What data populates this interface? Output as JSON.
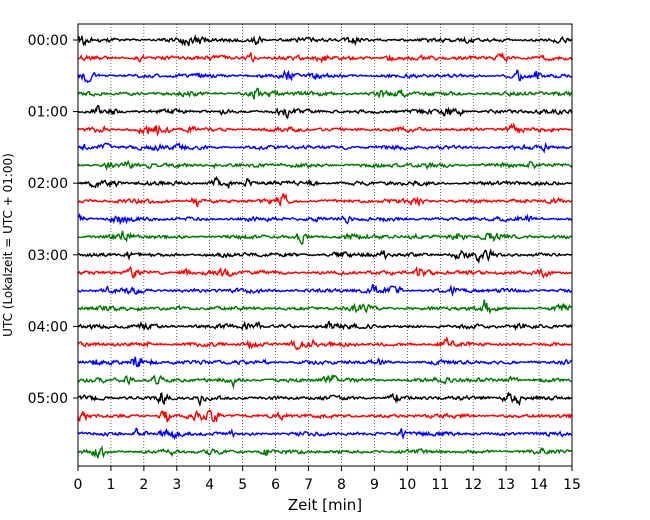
{
  "chart_data": {
    "type": "line",
    "title": "",
    "xlabel": "Zeit  [min]",
    "ylabel": "UTC (Lokalzeit = UTC + 01:00)",
    "xlim": [
      0,
      15
    ],
    "x_ticks": [
      0,
      1,
      2,
      3,
      4,
      5,
      6,
      7,
      8,
      9,
      10,
      11,
      12,
      13,
      14,
      15
    ],
    "x_tick_labels": [
      "0",
      "1",
      "2",
      "3",
      "4",
      "5",
      "6",
      "7",
      "8",
      "9",
      "10",
      "11",
      "12",
      "13",
      "14",
      "15"
    ],
    "y_tick_labels": [
      "00:00",
      "01:00",
      "02:00",
      "03:00",
      "04:00",
      "05:00"
    ],
    "grid": "vertical dotted at each minute",
    "legend": "none",
    "trace_colors": [
      "#000000",
      "#ff0000",
      "#0000ff",
      "#007700"
    ],
    "series": [
      {
        "start": "00:00",
        "color": "#000000"
      },
      {
        "start": "00:15",
        "color": "#ff0000"
      },
      {
        "start": "00:30",
        "color": "#0000ff"
      },
      {
        "start": "00:45",
        "color": "#007700"
      },
      {
        "start": "01:00",
        "color": "#000000"
      },
      {
        "start": "01:15",
        "color": "#ff0000"
      },
      {
        "start": "01:30",
        "color": "#0000ff"
      },
      {
        "start": "01:45",
        "color": "#007700"
      },
      {
        "start": "02:00",
        "color": "#000000"
      },
      {
        "start": "02:15",
        "color": "#ff0000"
      },
      {
        "start": "02:30",
        "color": "#0000ff"
      },
      {
        "start": "02:45",
        "color": "#007700"
      },
      {
        "start": "03:00",
        "color": "#000000"
      },
      {
        "start": "03:15",
        "color": "#ff0000"
      },
      {
        "start": "03:30",
        "color": "#0000ff"
      },
      {
        "start": "03:45",
        "color": "#007700"
      },
      {
        "start": "04:00",
        "color": "#000000"
      },
      {
        "start": "04:15",
        "color": "#ff0000"
      },
      {
        "start": "04:30",
        "color": "#0000ff"
      },
      {
        "start": "04:45",
        "color": "#007700"
      },
      {
        "start": "05:00",
        "color": "#000000"
      },
      {
        "start": "05:15",
        "color": "#ff0000"
      },
      {
        "start": "05:30",
        "color": "#0000ff"
      },
      {
        "start": "05:45",
        "color": "#007700"
      }
    ]
  }
}
